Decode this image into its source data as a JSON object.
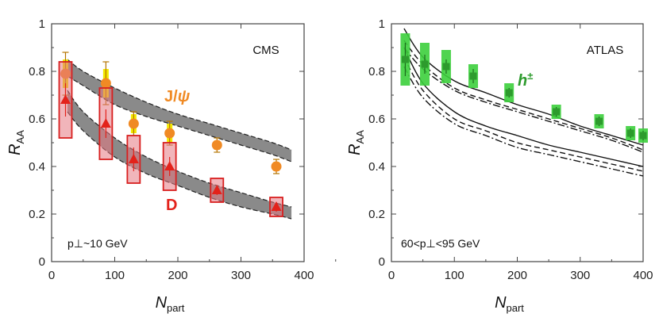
{
  "chart_data": [
    {
      "type": "scatter",
      "experiment": "CMS",
      "xlabel": "N",
      "xlabel_sub": "part",
      "ylabel": "R",
      "ylabel_sub": "AA",
      "xlim": [
        0,
        400
      ],
      "ylim": [
        0,
        1
      ],
      "xticks": [
        "0",
        "100",
        "200",
        "300",
        "400"
      ],
      "yticks": [
        "0",
        "0.2",
        "0.4",
        "0.6",
        "0.8",
        "1"
      ],
      "annotation": "p⊥~10 GeV",
      "series": [
        {
          "name": "J/ψ",
          "label_main": "J/",
          "label_greek": "ψ",
          "color": "#f08a24",
          "syst_color": "#f2e800",
          "points": [
            {
              "x": 22,
              "y": 0.79,
              "err": 0.09,
              "syst": 0.06
            },
            {
              "x": 86,
              "y": 0.75,
              "err": 0.09,
              "syst": 0.06
            },
            {
              "x": 130,
              "y": 0.58,
              "err": 0.05,
              "syst": 0.04
            },
            {
              "x": 187,
              "y": 0.54,
              "err": 0.05,
              "syst": 0.04
            },
            {
              "x": 262,
              "y": 0.49,
              "err": 0.03,
              "syst": 0.02
            },
            {
              "x": 356,
              "y": 0.4,
              "err": 0.03,
              "syst": 0.02
            }
          ]
        },
        {
          "name": "D",
          "color": "#e3221b",
          "box_color": "#d81f1f",
          "points": [
            {
              "x": 22,
              "y": 0.68,
              "err": 0.07,
              "syst": 0.16
            },
            {
              "x": 86,
              "y": 0.58,
              "err": 0.06,
              "syst": 0.15
            },
            {
              "x": 130,
              "y": 0.43,
              "err": 0.05,
              "syst": 0.1
            },
            {
              "x": 187,
              "y": 0.4,
              "err": 0.04,
              "syst": 0.1
            },
            {
              "x": 262,
              "y": 0.3,
              "err": 0.02,
              "syst": 0.05
            },
            {
              "x": 356,
              "y": 0.23,
              "err": 0.02,
              "syst": 0.04
            }
          ]
        }
      ],
      "bands": [
        {
          "name": "J/ψ model",
          "x": [
            25,
            50,
            100,
            150,
            200,
            250,
            300,
            350,
            380
          ],
          "lower": [
            0.78,
            0.74,
            0.66,
            0.61,
            0.57,
            0.53,
            0.49,
            0.45,
            0.42
          ],
          "upper": [
            0.85,
            0.8,
            0.73,
            0.67,
            0.62,
            0.58,
            0.54,
            0.5,
            0.47
          ]
        },
        {
          "name": "D model",
          "x": [
            25,
            50,
            100,
            150,
            200,
            250,
            300,
            350,
            380
          ],
          "lower": [
            0.63,
            0.55,
            0.44,
            0.37,
            0.32,
            0.27,
            0.23,
            0.2,
            0.18
          ],
          "upper": [
            0.72,
            0.63,
            0.52,
            0.44,
            0.38,
            0.33,
            0.29,
            0.25,
            0.23
          ]
        }
      ]
    },
    {
      "type": "scatter",
      "experiment": "ATLAS",
      "xlabel": "N",
      "xlabel_sub": "part",
      "ylabel": "R",
      "ylabel_sub": "AA",
      "xlim": [
        0,
        400
      ],
      "ylim": [
        0,
        1
      ],
      "xticks": [
        "0",
        "100",
        "200",
        "300",
        "400"
      ],
      "yticks": [
        "0",
        "0.2",
        "0.4",
        "0.6",
        "0.8",
        "1"
      ],
      "annotation": "60<p⊥<95 GeV",
      "series": [
        {
          "name": "h±",
          "label_main": "h",
          "label_sup": "±",
          "color": "#2d9b2d",
          "syst_color": "#3ccf3c",
          "points": [
            {
              "x": 22,
              "y": 0.85,
              "err": 0.07,
              "syst": 0.11
            },
            {
              "x": 53,
              "y": 0.83,
              "err": 0.04,
              "syst": 0.09
            },
            {
              "x": 87,
              "y": 0.82,
              "err": 0.03,
              "syst": 0.07
            },
            {
              "x": 130,
              "y": 0.78,
              "err": 0.03,
              "syst": 0.05
            },
            {
              "x": 187,
              "y": 0.71,
              "err": 0.02,
              "syst": 0.04
            },
            {
              "x": 262,
              "y": 0.63,
              "err": 0.02,
              "syst": 0.03
            },
            {
              "x": 330,
              "y": 0.59,
              "err": 0.02,
              "syst": 0.03
            },
            {
              "x": 380,
              "y": 0.54,
              "err": 0.02,
              "syst": 0.03
            },
            {
              "x": 400,
              "y": 0.53,
              "err": 0.02,
              "syst": 0.03
            }
          ]
        }
      ],
      "curves": [
        {
          "name": "solid upper",
          "style": "solid",
          "x": [
            20,
            50,
            100,
            150,
            200,
            250,
            300,
            350,
            400
          ],
          "y": [
            0.98,
            0.86,
            0.76,
            0.71,
            0.66,
            0.62,
            0.57,
            0.53,
            0.49
          ]
        },
        {
          "name": "dashed upper",
          "style": "dashed",
          "x": [
            20,
            50,
            100,
            150,
            200,
            250,
            300,
            350,
            400
          ],
          "y": [
            0.93,
            0.83,
            0.73,
            0.68,
            0.64,
            0.6,
            0.56,
            0.52,
            0.47
          ]
        },
        {
          "name": "dashdot upper",
          "style": "dashdot",
          "x": [
            20,
            50,
            100,
            150,
            200,
            250,
            300,
            350,
            400
          ],
          "y": [
            0.9,
            0.81,
            0.72,
            0.67,
            0.63,
            0.59,
            0.55,
            0.51,
            0.46
          ]
        },
        {
          "name": "solid lower",
          "style": "solid",
          "x": [
            20,
            50,
            100,
            150,
            200,
            250,
            300,
            350,
            400
          ],
          "y": [
            0.9,
            0.75,
            0.63,
            0.57,
            0.53,
            0.49,
            0.46,
            0.43,
            0.4
          ]
        },
        {
          "name": "dashed lower",
          "style": "dashed",
          "x": [
            20,
            50,
            100,
            150,
            200,
            250,
            300,
            350,
            400
          ],
          "y": [
            0.86,
            0.72,
            0.6,
            0.55,
            0.5,
            0.47,
            0.44,
            0.41,
            0.38
          ]
        },
        {
          "name": "dashdot lower",
          "style": "dashdot",
          "x": [
            20,
            50,
            100,
            150,
            200,
            250,
            300,
            350,
            400
          ],
          "y": [
            0.82,
            0.69,
            0.58,
            0.53,
            0.48,
            0.45,
            0.42,
            0.39,
            0.36
          ]
        }
      ]
    }
  ]
}
